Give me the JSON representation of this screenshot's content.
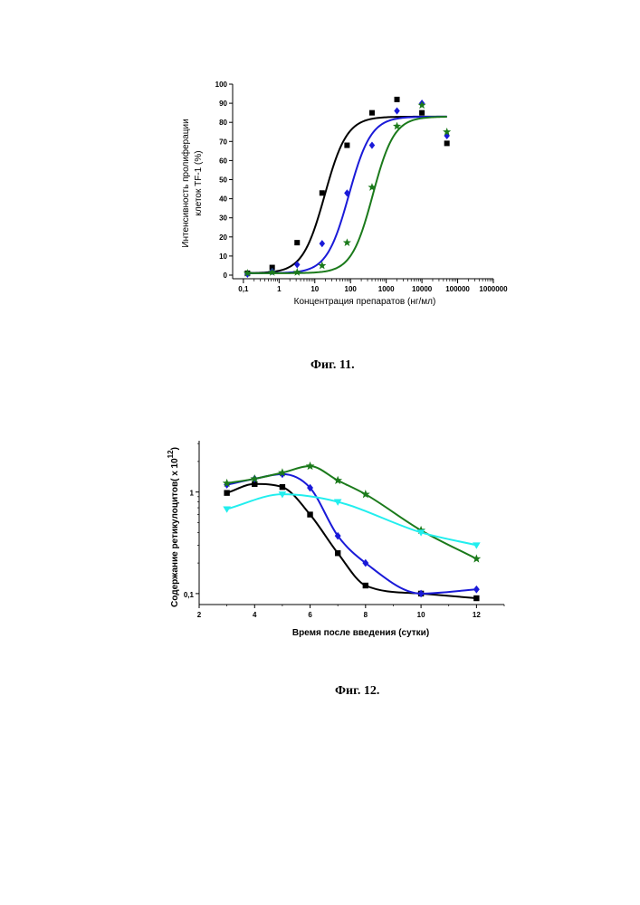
{
  "captions": {
    "fig11": "Фиг. 11.",
    "fig12": "Фиг. 12."
  },
  "colors": {
    "black": "#000000",
    "blue": "#1a1ad8",
    "green": "#1b7a1b",
    "cyan": "#22eeee"
  },
  "chart_data": [
    {
      "type": "scatter",
      "id": "fig11",
      "xlabel": "Концентрация препаратов (нг/мл)",
      "ylabel": "Интенсивность пролиферации клеток TF-1 (%)",
      "xscale": "log",
      "xlim": [
        0.05,
        1000000
      ],
      "ylim": [
        0,
        100
      ],
      "xticks": [
        0.1,
        1,
        10,
        100,
        1000,
        10000,
        100000,
        1000000
      ],
      "xtick_labels": [
        "0,1",
        "1",
        "10",
        "100",
        "1000",
        "10000",
        "100000",
        "1000000"
      ],
      "yticks": [
        0,
        10,
        20,
        30,
        40,
        50,
        60,
        70,
        80,
        90,
        100
      ],
      "ytick_labels": [
        "0",
        "10",
        "20",
        "30",
        "40",
        "50",
        "60",
        "70",
        "80",
        "90",
        "100"
      ],
      "series": [
        {
          "marker": "square",
          "color": "#000000",
          "x": [
            0.13,
            0.64,
            3.2,
            16,
            80,
            400,
            2000,
            10000,
            50000
          ],
          "y": [
            1,
            4,
            17,
            43,
            68,
            85,
            92,
            85,
            69
          ],
          "fit": {
            "ec50": 19,
            "top": 83,
            "bottom": 1,
            "hill": 1.4
          }
        },
        {
          "marker": "diamond",
          "color": "#1a1ad8",
          "x": [
            0.13,
            0.64,
            3.2,
            16,
            80,
            400,
            2000,
            10000,
            50000
          ],
          "y": [
            0.5,
            2,
            5.5,
            16.5,
            43,
            68,
            86,
            90,
            73
          ],
          "fit": {
            "ec50": 90,
            "top": 83,
            "bottom": 1,
            "hill": 1.4
          }
        },
        {
          "marker": "star",
          "color": "#1b7a1b",
          "x": [
            0.13,
            0.64,
            3.2,
            16,
            80,
            400,
            2000,
            10000,
            50000
          ],
          "y": [
            1,
            1.5,
            1.5,
            5,
            17,
            46,
            78,
            89,
            75
          ],
          "fit": {
            "ec50": 420,
            "top": 83,
            "bottom": 1,
            "hill": 1.45
          }
        }
      ]
    },
    {
      "type": "line",
      "id": "fig12",
      "xlabel": "Время после введения (сутки)",
      "ylabel_main": "Содержание ретикулоцитов( х 10",
      "ylabel_sup": "12",
      "ylabel_end": ")",
      "yscale": "log",
      "xlim": [
        2,
        13
      ],
      "ylim": [
        0.078,
        3.2
      ],
      "xticks": [
        2,
        4,
        6,
        8,
        10,
        12
      ],
      "xtick_labels": [
        "2",
        "4",
        "6",
        "8",
        "10",
        "12"
      ],
      "yticks": [
        0.1,
        1
      ],
      "ytick_labels": [
        "0,1",
        "1"
      ],
      "series": [
        {
          "marker": "square",
          "color": "#000000",
          "x": [
            3,
            4,
            5,
            6,
            7,
            8,
            10,
            12
          ],
          "y": [
            0.98,
            1.2,
            1.12,
            0.6,
            0.25,
            0.12,
            0.1,
            0.09
          ]
        },
        {
          "marker": "diamond",
          "color": "#1a1ad8",
          "x": [
            3,
            4,
            5,
            6,
            7,
            8,
            10,
            12
          ],
          "y": [
            1.18,
            1.35,
            1.5,
            1.1,
            0.37,
            0.2,
            0.1,
            0.11
          ]
        },
        {
          "marker": "star",
          "color": "#1b7a1b",
          "x": [
            3,
            4,
            5,
            6,
            7,
            8,
            10,
            12
          ],
          "y": [
            1.22,
            1.35,
            1.55,
            1.8,
            1.3,
            0.95,
            0.42,
            0.22
          ]
        },
        {
          "marker": "triangle-down",
          "color": "#22eeee",
          "x": [
            3,
            5,
            7,
            10,
            12
          ],
          "y": [
            0.68,
            0.95,
            0.8,
            0.4,
            0.3
          ]
        }
      ]
    }
  ]
}
